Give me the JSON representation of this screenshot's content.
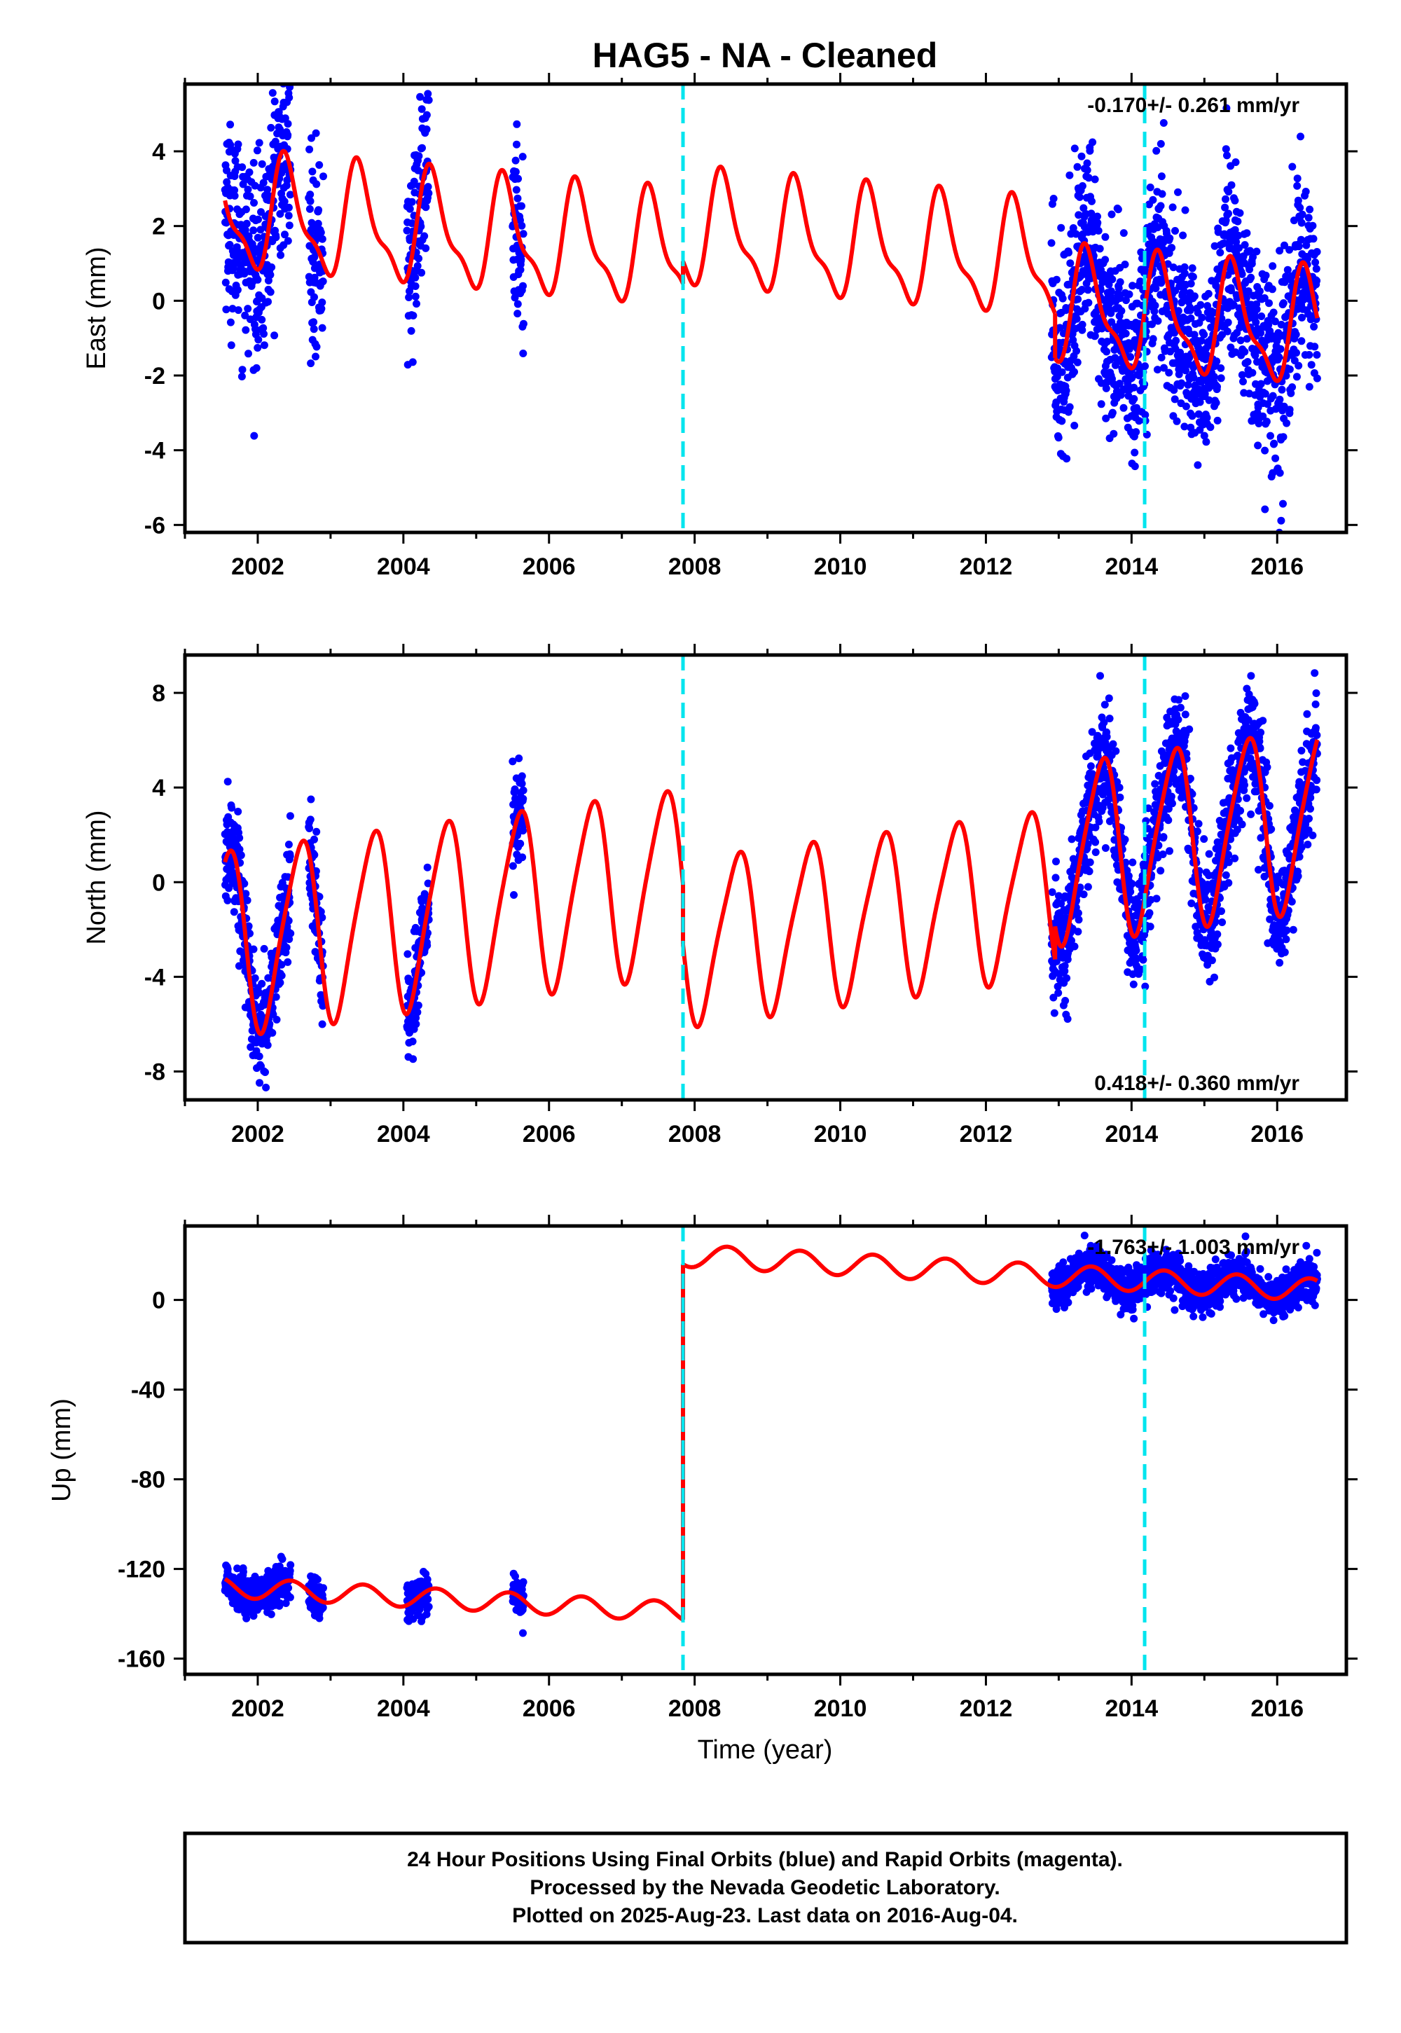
{
  "title": "HAG5  - NA - Cleaned",
  "x_axis_label": "Time (year)",
  "footer_lines": [
    "24 Hour Positions Using Final Orbits (blue) and Rapid Orbits (magenta).",
    "Processed by the Nevada Geodetic Laboratory.",
    "Plotted on 2025-Aug-23. Last data on 2016-Aug-04."
  ],
  "colors": {
    "observations": "#0000ff",
    "model": "#ff0000",
    "offset_marker": "#00e5ee",
    "frame": "#000000"
  },
  "chart_data": [
    {
      "type": "scatter",
      "component": "East",
      "ylabel": "East (mm)",
      "rate_text": "-0.170+/- 0.261 mm/yr",
      "rate_position": "top-right",
      "xlim": [
        2001.0,
        2016.95
      ],
      "ylim": [
        -6.2,
        5.8
      ],
      "x_ticks": [
        "2002",
        "2004",
        "2006",
        "2008",
        "2010",
        "2012",
        "2014",
        "2016"
      ],
      "y_ticks": [
        "4",
        "2",
        "0",
        "-2",
        "-4",
        "-6"
      ],
      "y_tick_values": [
        4,
        2,
        0,
        -2,
        -4,
        -6
      ],
      "offset_epochs": [
        2007.84,
        2014.18
      ],
      "data_spans": [
        [
          2001.55,
          2002.45
        ],
        [
          2002.7,
          2002.9
        ],
        [
          2004.05,
          2004.35
        ],
        [
          2005.5,
          2005.65
        ],
        [
          2012.9,
          2016.55
        ]
      ],
      "model": {
        "name": "Model fit",
        "segments": [
          {
            "start": 2001.55,
            "end": 2007.84,
            "offset": 0.9,
            "rate": -0.17,
            "amp1": 1.4,
            "phase1": 0.15,
            "amp2": 0.5,
            "phase2": 0.2
          },
          {
            "start": 2007.84,
            "end": 2012.95,
            "offset": 1.5,
            "rate": -0.17,
            "amp1": 1.4,
            "phase1": 0.15,
            "amp2": 0.5,
            "phase2": 0.2
          },
          {
            "start": 2012.95,
            "end": 2016.55,
            "offset": 0.3,
            "rate": -0.17,
            "amp1": 1.4,
            "phase1": 0.15,
            "amp2": 0.5,
            "phase2": 0.2
          }
        ]
      },
      "scatter_noise": 1.3,
      "points_approx": 1900
    },
    {
      "type": "scatter",
      "component": "North",
      "ylabel": "North (mm)",
      "rate_text": "0.418+/- 0.360 mm/yr",
      "rate_position": "bottom-right",
      "xlim": [
        2001.0,
        2016.95
      ],
      "ylim": [
        -9.2,
        9.6
      ],
      "x_ticks": [
        "2002",
        "2004",
        "2006",
        "2008",
        "2010",
        "2012",
        "2014",
        "2016"
      ],
      "y_ticks": [
        "8",
        "4",
        "0",
        "-4",
        "-8"
      ],
      "y_tick_values": [
        8,
        4,
        0,
        -4,
        -8
      ],
      "offset_epochs": [
        2007.84,
        2014.18
      ],
      "data_spans": [
        [
          2001.55,
          2002.45
        ],
        [
          2002.7,
          2002.9
        ],
        [
          2004.05,
          2004.35
        ],
        [
          2005.5,
          2005.65
        ],
        [
          2012.9,
          2016.55
        ]
      ],
      "model": {
        "name": "Model fit",
        "segments": [
          {
            "start": 2001.55,
            "end": 2007.84,
            "offset": 1.0,
            "rate": 0.418,
            "amp1": 3.8,
            "phase1": 0.33,
            "amp2": 0.6,
            "phase2": 0.1
          },
          {
            "start": 2007.84,
            "end": 2012.95,
            "offset": -1.6,
            "rate": 0.418,
            "amp1": 3.4,
            "phase1": 0.33,
            "amp2": 0.6,
            "phase2": 0.1
          },
          {
            "start": 2012.95,
            "end": 2016.55,
            "offset": 0.0,
            "rate": 0.418,
            "amp1": 3.7,
            "phase1": 0.33,
            "amp2": 0.6,
            "phase2": 0.1
          }
        ]
      },
      "scatter_noise": 1.2,
      "points_approx": 1900
    },
    {
      "type": "scatter",
      "component": "Up",
      "ylabel": "Up (mm)",
      "rate_text": "-1.763+/- 1.003 mm/yr",
      "rate_position": "top-right",
      "xlim": [
        2001.0,
        2016.95
      ],
      "ylim": [
        -167,
        33
      ],
      "x_ticks": [
        "2002",
        "2004",
        "2006",
        "2008",
        "2010",
        "2012",
        "2014",
        "2016"
      ],
      "y_ticks": [
        "0",
        "-40",
        "-80",
        "-120",
        "-160"
      ],
      "y_tick_values": [
        0,
        -40,
        -80,
        -120,
        -160
      ],
      "offset_epochs": [
        2007.84,
        2014.18
      ],
      "data_spans": [
        [
          2001.55,
          2002.45
        ],
        [
          2002.7,
          2002.9
        ],
        [
          2004.05,
          2004.35
        ],
        [
          2005.5,
          2005.65
        ],
        [
          2012.9,
          2016.55
        ]
      ],
      "model": {
        "name": "Model fit",
        "segments": [
          {
            "start": 2001.55,
            "end": 2007.84,
            "offset": -143.0,
            "rate": -1.763,
            "amp1": 4.5,
            "phase1": 0.2,
            "amp2": 0.0,
            "phase2": 0.0
          },
          {
            "start": 2007.84,
            "end": 2016.55,
            "offset": 16.0,
            "rate": -1.763,
            "amp1": 5.0,
            "phase1": 0.2,
            "amp2": 0.0,
            "phase2": 0.0
          }
        ]
      },
      "scatter_noise": 4.5,
      "points_approx": 1900
    }
  ]
}
